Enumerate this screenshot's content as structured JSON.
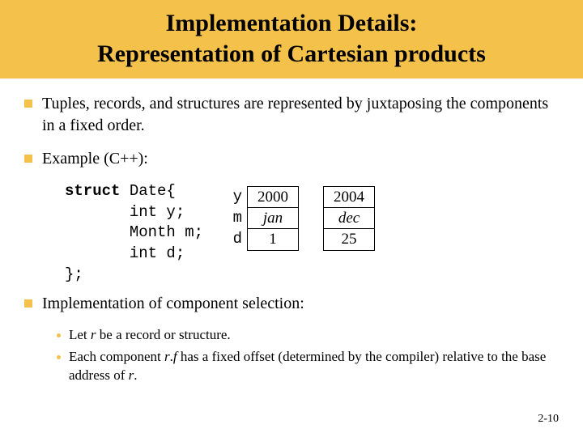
{
  "title_line1": "Implementation Details:",
  "title_line2": "Representation of Cartesian products",
  "bullet1": "Tuples, records, and structures are represented by juxtaposing the components in a fixed order.",
  "bullet2": "Example (C++):",
  "code": {
    "kw": "struct",
    "l1": " Date{",
    "l2": "       int y;",
    "l3": "       Month m;",
    "l4": "       int d;",
    "l5": "};"
  },
  "labels": {
    "y": "y",
    "m": "m",
    "d": "d"
  },
  "rec1": {
    "y": "2000",
    "m": "jan",
    "d": "1"
  },
  "rec2": {
    "y": "2004",
    "m": "dec",
    "d": "25"
  },
  "bullet3": "Implementation of component selection:",
  "sub1_a": "Let ",
  "sub1_b": "r",
  "sub1_c": " be a record or structure.",
  "sub2_a": "Each component ",
  "sub2_b": "r",
  "sub2_c": ".",
  "sub2_d": "f",
  "sub2_e": " has a fixed offset (determined by the compiler) relative to the base address of ",
  "sub2_f": "r",
  "sub2_g": ".",
  "slide_num": "2-10",
  "colors": {
    "title_bg": "#f4c14a",
    "bullet_color": "#f4c14a",
    "text": "#000000",
    "bg": "#ffffff",
    "border": "#000000"
  }
}
